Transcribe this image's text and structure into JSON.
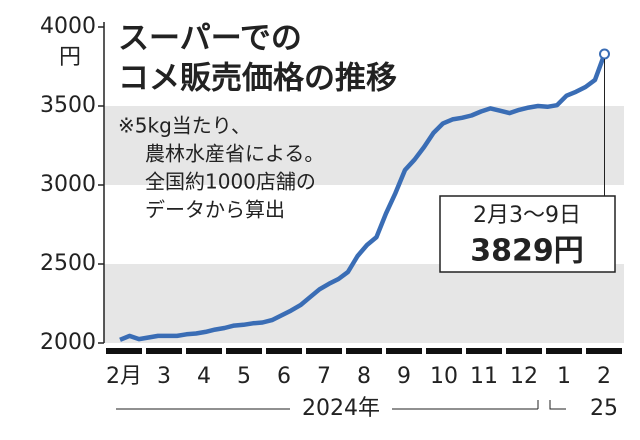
{
  "chart_data": {
    "type": "line",
    "title": [
      "スーパーでの",
      "コメ販売価格の推移"
    ],
    "note": [
      "※5kg当たり、",
      "農林水産省による。",
      "全国約1000店舗の",
      "データから算出"
    ],
    "y_unit": "円",
    "month_labels": [
      "2月",
      "3",
      "4",
      "5",
      "6",
      "7",
      "8",
      "9",
      "10",
      "11",
      "12",
      "1",
      "2"
    ],
    "year_labels": [
      "2024年",
      "25"
    ],
    "series": [
      {
        "color": "#3a6db5",
        "values": [
          2020,
          2045,
          2025,
          2035,
          2045,
          2045,
          2045,
          2055,
          2060,
          2070,
          2085,
          2095,
          2110,
          2115,
          2125,
          2130,
          2145,
          2175,
          2205,
          2240,
          2290,
          2340,
          2375,
          2405,
          2450,
          2550,
          2620,
          2670,
          2820,
          2950,
          3095,
          3160,
          3240,
          3330,
          3390,
          3415,
          3425,
          3440,
          3465,
          3485,
          3470,
          3455,
          3475,
          3490,
          3500,
          3495,
          3505,
          3565,
          3590,
          3620,
          3665,
          3829
        ],
        "value_labels": [
          null,
          null,
          null,
          null,
          null,
          null,
          null,
          null,
          null,
          null,
          null,
          null,
          null,
          null,
          null,
          null,
          null,
          null,
          null,
          null,
          null,
          null,
          null,
          null,
          null,
          null,
          null,
          null,
          null,
          null,
          null,
          null,
          null,
          null,
          null,
          null,
          null,
          null,
          null,
          null,
          null,
          null,
          null,
          null,
          null,
          null,
          null,
          null,
          null,
          null,
          null,
          "3829円"
        ]
      }
    ],
    "callout_date": "2月3～9日",
    "ylim": [
      2000,
      4000
    ],
    "yticks": [
      2000,
      2500,
      3000,
      3500,
      4000
    ]
  }
}
